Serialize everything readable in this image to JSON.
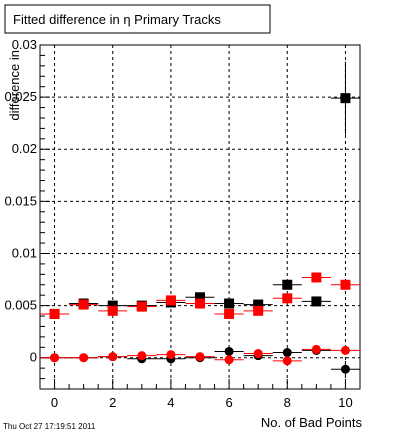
{
  "chart_data": {
    "type": "scatter",
    "title": "Fitted difference in  η Primary Tracks",
    "xlabel": "No. of Bad Points",
    "ylabel": "difference in",
    "xlim": [
      -0.5,
      10.5
    ],
    "ylim": [
      -0.003,
      0.03
    ],
    "x_ticks": [
      0,
      2,
      4,
      6,
      8,
      10
    ],
    "x_tick_labels": [
      "0",
      "2",
      "4",
      "6",
      "8",
      "10"
    ],
    "y_ticks": [
      0,
      0.005,
      0.01,
      0.015,
      0.02,
      0.025,
      0.03
    ],
    "y_tick_labels": [
      "0",
      "0.005",
      "0.01",
      "0.015",
      "0.02",
      "0.025",
      "0.03"
    ],
    "grid": true,
    "series": [
      {
        "marker": "square",
        "color": "#000000",
        "x": [
          0,
          1,
          2,
          3,
          4,
          5,
          6,
          7,
          8,
          9,
          10
        ],
        "y": [
          0.0042,
          0.0052,
          0.005,
          0.005,
          0.0053,
          0.0058,
          0.0052,
          0.0051,
          0.007,
          0.0054,
          0.0249
        ],
        "yerr": [
          0.0002,
          0.0002,
          0.0002,
          0.0002,
          0.0002,
          0.0002,
          0.0002,
          0.0003,
          0.0004,
          0.0004,
          0.0035
        ]
      },
      {
        "marker": "square",
        "color": "#ff0000",
        "x": [
          0,
          1,
          2,
          3,
          4,
          5,
          6,
          7,
          8,
          9,
          10
        ],
        "y": [
          0.0042,
          0.0051,
          0.0045,
          0.0049,
          0.0055,
          0.0052,
          0.0042,
          0.0045,
          0.0057,
          0.0077,
          0.007
        ],
        "yerr": [
          0.0001,
          0.0001,
          0.0001,
          0.0001,
          0.0001,
          0.0001,
          0.0002,
          0.0002,
          0.0002,
          0.0003,
          0.0003
        ]
      },
      {
        "marker": "circle",
        "color": "#000000",
        "x": [
          0,
          1,
          2,
          3,
          4,
          5,
          6,
          7,
          8,
          9,
          10
        ],
        "y": [
          0.0,
          0.0,
          0.0001,
          -0.0001,
          -0.0001,
          0.0,
          0.0006,
          0.0002,
          0.0005,
          0.0007,
          -0.0011
        ],
        "yerr": [
          0.0001,
          0.0001,
          0.0001,
          0.0001,
          0.0001,
          0.0001,
          0.0002,
          0.0002,
          0.0003,
          0.0003,
          0.0008
        ]
      },
      {
        "marker": "circle",
        "color": "#ff0000",
        "x": [
          0,
          1,
          2,
          3,
          4,
          5,
          6,
          7,
          8,
          9,
          10
        ],
        "y": [
          0.0,
          0.0,
          0.0001,
          0.0002,
          0.0003,
          0.0001,
          -0.0002,
          0.0004,
          -0.0003,
          0.0008,
          0.0007
        ],
        "yerr": [
          0.0001,
          0.0001,
          0.0001,
          0.0001,
          0.0001,
          0.0001,
          0.0001,
          0.0001,
          0.0002,
          0.0002,
          0.0002
        ]
      }
    ],
    "x_error_half_width": 0.5
  },
  "footer": {
    "timestamp": "Thu Oct 27 17:19:51 2011"
  }
}
